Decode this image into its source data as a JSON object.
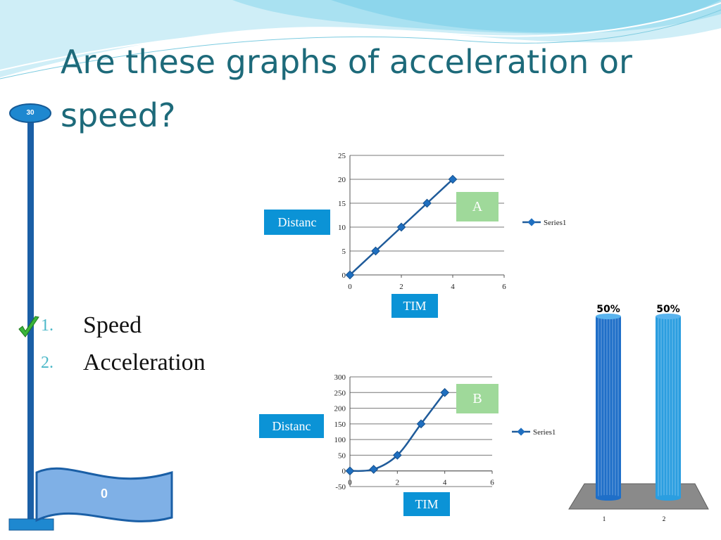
{
  "slide": {
    "title": "Are these graphs of acceleration or speed?",
    "timer": "30",
    "score": "0",
    "options": [
      {
        "number": "1.",
        "text": "Speed",
        "correct": true
      },
      {
        "number": "2.",
        "text": "Acceleration",
        "correct": false
      }
    ],
    "colors": {
      "title": "#1d6a7a",
      "pole": "#1a5fa6",
      "flag": "#7fb0e6",
      "label_blue": "#0b93d6",
      "label_green": "#9fd99a",
      "series": "#1f5b9a",
      "check": "#3ab53a"
    }
  },
  "graph_a": {
    "distance_label": "Distanc",
    "time_label": "TIM",
    "tag": "A",
    "legend": "Series1"
  },
  "graph_b": {
    "distance_label": "Distanc",
    "time_label": "TIM",
    "tag": "B",
    "legend": "Series1"
  },
  "chart_data": [
    {
      "type": "line",
      "title": "",
      "xlabel": "",
      "ylabel": "",
      "x": [
        0,
        1,
        2,
        3,
        4
      ],
      "series": [
        {
          "name": "Series1",
          "values": [
            0,
            5,
            10,
            15,
            20
          ]
        }
      ],
      "xlim": [
        0,
        6
      ],
      "ylim": [
        0,
        25
      ],
      "xticks": [
        "0",
        "2",
        "4",
        "6"
      ],
      "yticks": [
        "0",
        "5",
        "10",
        "15",
        "20",
        "25"
      ],
      "grid": true,
      "legend": "right"
    },
    {
      "type": "line",
      "title": "",
      "xlabel": "",
      "ylabel": "",
      "x": [
        0,
        1,
        2,
        3,
        4
      ],
      "series": [
        {
          "name": "Series1",
          "values": [
            0,
            5,
            50,
            150,
            250
          ]
        }
      ],
      "xlim": [
        0,
        6
      ],
      "ylim": [
        -50,
        300
      ],
      "xticks": [
        "0",
        "2",
        "4",
        "6"
      ],
      "yticks": [
        "-50",
        "0",
        "50",
        "100",
        "150",
        "200",
        "250",
        "300"
      ],
      "grid": true,
      "legend": "right"
    },
    {
      "type": "bar",
      "title": "",
      "categories": [
        "1",
        "2"
      ],
      "values": [
        50,
        50
      ],
      "value_labels": [
        "50%",
        "50%"
      ],
      "ylim": [
        0,
        100
      ]
    }
  ]
}
